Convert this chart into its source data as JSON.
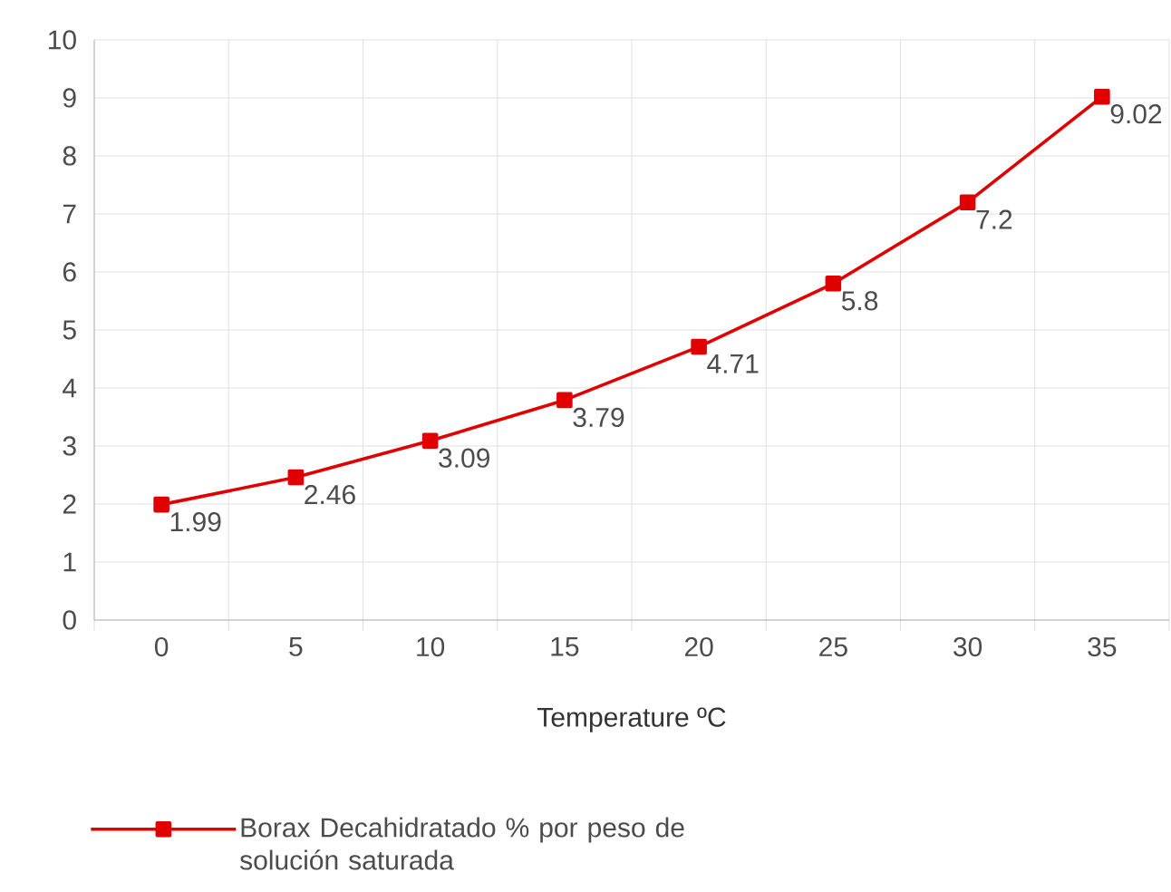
{
  "chart_data": {
    "type": "line",
    "xlabel": "Temperature ºC",
    "categories": [
      "0",
      "5",
      "10",
      "15",
      "20",
      "25",
      "30",
      "35"
    ],
    "series": [
      {
        "name": "Borax Decahidratado % por peso de solución saturada",
        "color": "#e00000",
        "values": [
          1.99,
          2.46,
          3.09,
          3.79,
          4.71,
          5.8,
          7.2,
          9.02
        ]
      }
    ],
    "ylim": [
      0,
      10
    ],
    "yticks": [
      0,
      1,
      2,
      3,
      4,
      5,
      6,
      7,
      8,
      9,
      10
    ],
    "grid": true,
    "legend": "bottom",
    "marker": "square",
    "line_style": "solid",
    "data_labels": true
  }
}
